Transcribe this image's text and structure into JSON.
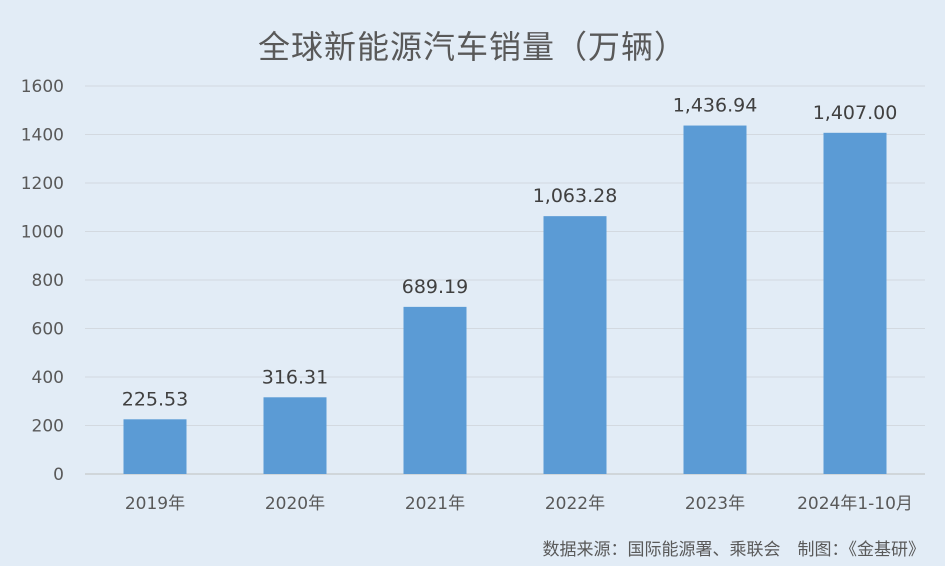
{
  "chart_data": {
    "type": "bar",
    "title": "全球新能源汽车销量（万辆）",
    "categories": [
      "2019年",
      "2020年",
      "2021年",
      "2022年",
      "2023年",
      "2024年1-10月"
    ],
    "values": [
      225.53,
      316.31,
      689.19,
      1063.28,
      1436.94,
      1407.0
    ],
    "data_labels": [
      "225.53",
      "316.31",
      "689.19",
      "1,063.28",
      "1,436.94",
      "1,407.00"
    ],
    "xlabel": "",
    "ylabel": "",
    "ylim": [
      0,
      1600
    ],
    "yticks": [
      0,
      200,
      400,
      600,
      800,
      1000,
      1200,
      1400,
      1600
    ],
    "grid": true,
    "legend": "none",
    "bar_color": "#5b9bd5"
  },
  "footer": {
    "source": "数据来源：国际能源署、乘联会　制图：《金基研》"
  }
}
